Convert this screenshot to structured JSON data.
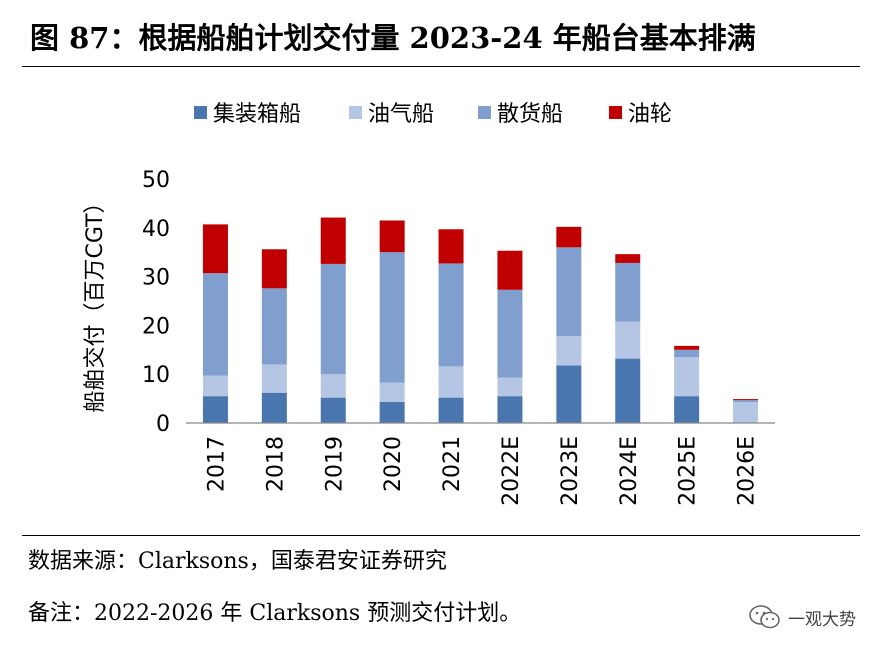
{
  "header": {
    "title": "图 87：根据船舶计划交付量 2023-24 年船台基本排满"
  },
  "chart_data": {
    "type": "bar",
    "stacked": true,
    "title": "图 87：根据船舶计划交付量 2023-24 年船台基本排满",
    "ylabel": "船舶交付（百万CGT）",
    "xlabel": "",
    "ylim": [
      0,
      50
    ],
    "yticks": [
      "0",
      "10",
      "20",
      "30",
      "40",
      "50"
    ],
    "grid": false,
    "legend_position": "top",
    "categories": [
      "2017",
      "2018",
      "2019",
      "2020",
      "2021",
      "2022E",
      "2023E",
      "2024E",
      "2025E",
      "2026E"
    ],
    "series": [
      {
        "name": "集装箱船",
        "color": "#4a76b0",
        "values": [
          5.5,
          6.2,
          5.2,
          4.3,
          5.2,
          5.5,
          11.8,
          13.2,
          5.5,
          0
        ]
      },
      {
        "name": "油气船",
        "color": "#b4c6e4",
        "values": [
          4.2,
          5.8,
          4.8,
          4.0,
          6.4,
          3.8,
          6.0,
          7.6,
          8.0,
          4.3
        ]
      },
      {
        "name": "散货船",
        "color": "#809fcf",
        "values": [
          21.0,
          15.6,
          22.6,
          26.7,
          21.1,
          18.0,
          18.2,
          12.0,
          1.5,
          0.4
        ]
      },
      {
        "name": "油轮",
        "color": "#c00000",
        "values": [
          10.0,
          8.0,
          9.5,
          6.5,
          7.0,
          8.0,
          4.2,
          1.8,
          0.8,
          0.2
        ]
      }
    ]
  },
  "footer": {
    "source": "数据来源：Clarksons，国泰君安证券研究",
    "note": "备注：2022-2026 年 Clarksons 预测交付计划。",
    "watermark": "一观大势",
    "watermark_icon": "wechat-icon"
  }
}
